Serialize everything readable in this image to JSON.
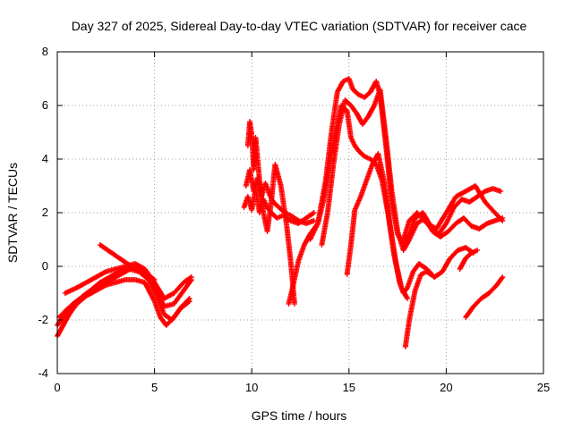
{
  "chart_data": {
    "type": "scatter",
    "title": "Day 327 of 2025, Sidereal Day-to-day VTEC variation (SDTVAR) for receiver cace",
    "xlabel": "GPS time / hours",
    "ylabel": "SDTVAR / TECUs",
    "xlim": [
      0,
      25
    ],
    "ylim": [
      -4,
      8
    ],
    "xticks": [
      0,
      5,
      10,
      15,
      20,
      25
    ],
    "yticks": [
      -4,
      -2,
      0,
      2,
      4,
      6,
      8
    ],
    "grid": true,
    "legend": "none",
    "marker": "plus",
    "color": "#ff0000",
    "series": [
      {
        "x": [
          0.0,
          0.3,
          0.6,
          1.0,
          1.5,
          2.0,
          2.5,
          3.0,
          3.5,
          4.0,
          4.5,
          5.0,
          5.3,
          5.6,
          6.0,
          6.4,
          6.8
        ],
        "y": [
          -2.6,
          -2.2,
          -1.8,
          -1.4,
          -1.1,
          -0.9,
          -0.7,
          -0.6,
          -0.5,
          -0.5,
          -0.6,
          -1.3,
          -1.9,
          -2.2,
          -1.9,
          -1.5,
          -1.2
        ]
      },
      {
        "x": [
          0.0,
          0.4,
          0.8,
          1.2,
          1.7,
          2.2,
          2.7,
          3.2,
          3.7,
          4.2,
          4.7,
          5.1,
          5.5,
          5.9,
          6.3,
          6.8
        ],
        "y": [
          -2.2,
          -1.8,
          -1.4,
          -1.2,
          -0.9,
          -0.6,
          -0.4,
          -0.2,
          -0.1,
          -0.2,
          -0.5,
          -1.1,
          -1.8,
          -2.0,
          -1.6,
          -1.3
        ]
      },
      {
        "x": [
          0.1,
          0.5,
          1.0,
          1.5,
          2.0,
          2.5,
          3.0,
          3.5,
          4.0,
          4.5,
          5.0,
          5.5,
          6.0,
          6.5,
          6.9
        ],
        "y": [
          -1.9,
          -1.6,
          -1.3,
          -1.0,
          -0.8,
          -0.6,
          -0.4,
          -0.2,
          0.0,
          -0.2,
          -0.8,
          -1.5,
          -1.4,
          -0.9,
          -0.5
        ]
      },
      {
        "x": [
          0.4,
          1.0,
          1.5,
          2.0,
          2.5,
          3.0,
          3.5,
          4.0,
          4.5,
          5.0,
          5.5,
          6.0,
          6.5,
          6.9
        ],
        "y": [
          -1.0,
          -0.8,
          -0.6,
          -0.4,
          -0.2,
          -0.1,
          0.0,
          0.1,
          -0.1,
          -0.6,
          -1.2,
          -1.0,
          -0.6,
          -0.4
        ]
      },
      {
        "x": [
          2.2,
          2.6,
          3.0,
          3.4,
          3.8,
          4.2,
          4.6,
          5.0
        ],
        "y": [
          0.8,
          0.6,
          0.4,
          0.2,
          0.0,
          -0.2,
          -0.3,
          -0.5
        ]
      },
      {
        "x": [
          9.6,
          9.8,
          10.0,
          10.2,
          10.4,
          10.6,
          10.8,
          11.0,
          11.3,
          11.6,
          12.0,
          12.4,
          12.8,
          13.2
        ],
        "y": [
          2.2,
          2.6,
          2.1,
          2.9,
          2.0,
          2.5,
          2.2,
          2.0,
          1.8,
          1.9,
          1.7,
          1.6,
          1.8,
          2.0
        ]
      },
      {
        "x": [
          9.7,
          9.9,
          10.1,
          10.3,
          10.5,
          10.7,
          10.9,
          11.1,
          11.4,
          11.7,
          12.0,
          12.4,
          12.8,
          13.2
        ],
        "y": [
          3.0,
          3.6,
          2.8,
          3.3,
          2.6,
          3.1,
          2.7,
          2.4,
          2.2,
          2.0,
          1.9,
          1.7,
          1.6,
          1.7
        ]
      },
      {
        "x": [
          9.8,
          9.9,
          10.0,
          10.1,
          10.2,
          10.4,
          10.6,
          10.8,
          11.0,
          11.2,
          11.5,
          11.8,
          12.0,
          12.2
        ],
        "y": [
          4.5,
          5.4,
          4.9,
          3.6,
          4.8,
          3.2,
          2.0,
          1.3,
          2.4,
          3.8,
          3.0,
          1.5,
          0.2,
          -1.4
        ]
      },
      {
        "x": [
          11.9,
          12.1,
          12.4,
          12.7,
          13.0,
          13.4,
          13.7,
          14.0,
          14.3,
          14.6,
          14.9,
          15.1,
          15.3,
          15.5,
          15.8,
          16.1,
          16.4,
          16.7,
          17.0,
          17.3,
          17.6,
          17.8,
          18.0,
          18.3,
          18.6,
          19.0,
          19.4,
          19.8,
          20.2,
          20.6,
          21.0,
          21.4
        ],
        "y": [
          -1.4,
          -0.8,
          0.2,
          0.8,
          1.2,
          1.6,
          2.5,
          3.8,
          5.0,
          6.0,
          5.8,
          4.8,
          4.5,
          4.3,
          4.1,
          4.0,
          3.8,
          3.2,
          2.0,
          0.5,
          -0.6,
          -1.0,
          -0.8,
          -0.2,
          0.1,
          -0.1,
          -0.4,
          -0.2,
          0.3,
          0.6,
          0.7,
          0.5
        ]
      },
      {
        "x": [
          13.0,
          13.4,
          13.8,
          14.1,
          14.4,
          14.7,
          15.0,
          15.2,
          15.5,
          15.8,
          16.1,
          16.4,
          16.6,
          16.9,
          17.2,
          17.5,
          17.8,
          18.1,
          18.4,
          18.8,
          19.2,
          19.6,
          20.0,
          20.4,
          20.8,
          21.2,
          21.6,
          22.0,
          22.4,
          22.8
        ],
        "y": [
          1.0,
          1.6,
          3.2,
          5.0,
          6.5,
          6.9,
          7.0,
          6.6,
          6.4,
          6.3,
          6.5,
          6.9,
          6.4,
          4.5,
          2.4,
          1.2,
          0.8,
          1.2,
          1.8,
          2.0,
          1.5,
          1.2,
          1.6,
          2.2,
          2.5,
          2.4,
          2.6,
          2.8,
          2.9,
          2.8
        ]
      },
      {
        "x": [
          13.6,
          13.9,
          14.2,
          14.5,
          14.8,
          15.1,
          15.4,
          15.7,
          16.0,
          16.3,
          16.6,
          16.9,
          17.2,
          17.5,
          17.8,
          18.1,
          18.5,
          18.9,
          19.3,
          19.7,
          20.1,
          20.5,
          20.9,
          21.3,
          21.7,
          22.1,
          22.5,
          22.9
        ],
        "y": [
          0.8,
          2.0,
          3.8,
          5.3,
          6.2,
          6.0,
          5.7,
          5.3,
          5.6,
          6.0,
          6.6,
          4.8,
          2.8,
          1.3,
          0.6,
          1.0,
          1.6,
          1.8,
          1.3,
          1.1,
          1.3,
          1.6,
          1.8,
          1.5,
          1.4,
          1.6,
          1.7,
          1.8
        ]
      },
      {
        "x": [
          14.9,
          15.1,
          15.3,
          15.6,
          15.9,
          16.2,
          16.5,
          16.8,
          17.1,
          17.4,
          17.7,
          18.0
        ],
        "y": [
          -0.3,
          0.8,
          2.1,
          2.6,
          3.2,
          3.8,
          4.2,
          3.2,
          1.6,
          0.2,
          -0.8,
          -1.2
        ]
      },
      {
        "x": [
          17.8,
          18.1,
          18.5,
          19.0,
          19.5,
          20.0,
          20.5,
          21.0,
          21.5,
          22.0,
          22.5,
          22.9
        ],
        "y": [
          1.0,
          1.7,
          2.0,
          1.6,
          1.4,
          2.0,
          2.6,
          2.8,
          3.0,
          2.4,
          2.0,
          1.7
        ]
      },
      {
        "x": [
          17.9,
          18.1,
          18.4,
          18.7,
          19.0,
          19.4
        ],
        "y": [
          -3.0,
          -2.0,
          -0.9,
          -0.3,
          -0.2,
          -0.4
        ]
      },
      {
        "x": [
          20.7,
          21.0,
          21.3,
          21.6
        ],
        "y": [
          -0.1,
          0.3,
          0.5,
          0.6
        ]
      },
      {
        "x": [
          21.0,
          21.4,
          21.8,
          22.2,
          22.6,
          22.9
        ],
        "y": [
          -1.9,
          -1.5,
          -1.2,
          -1.0,
          -0.7,
          -0.4
        ]
      }
    ]
  }
}
